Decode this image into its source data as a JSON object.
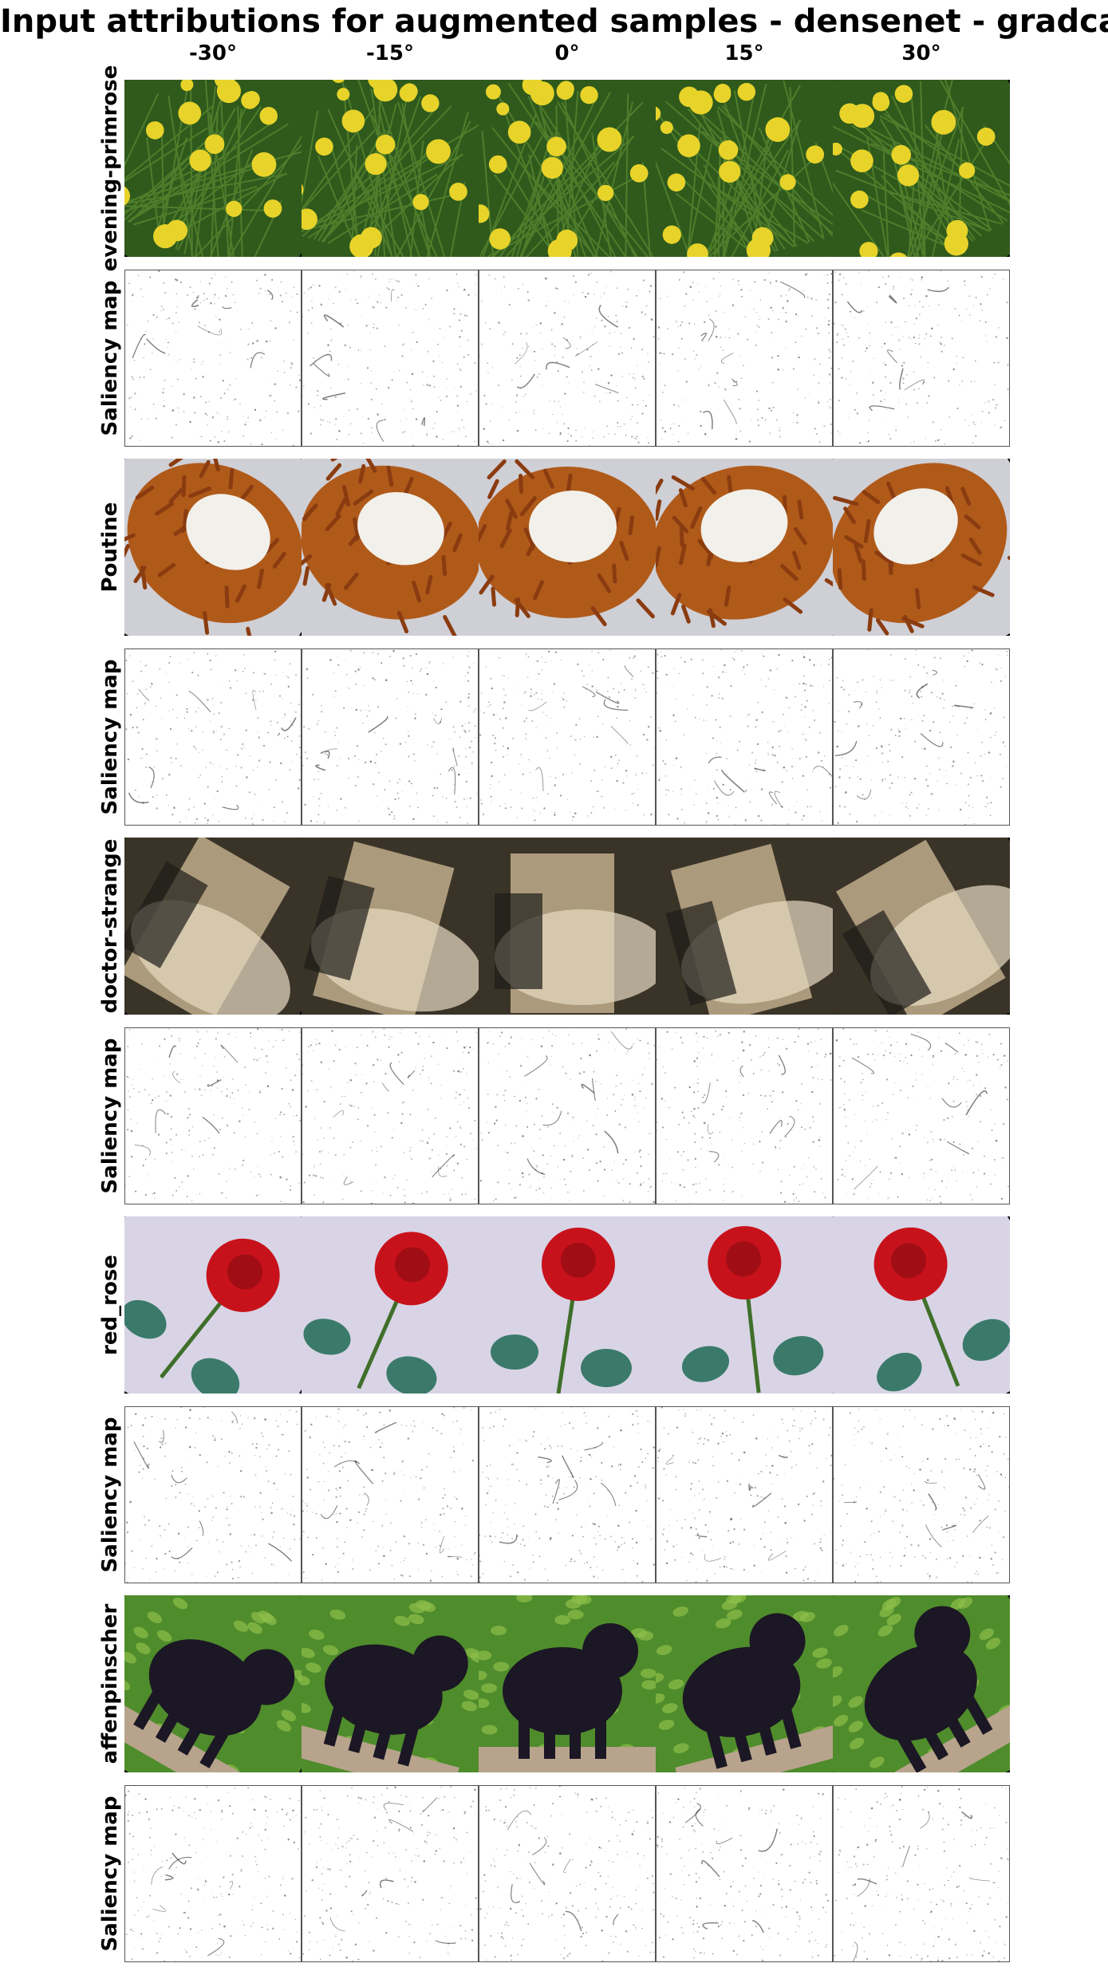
{
  "title": "Input attributions for augmented samples - densenet - gradcam",
  "columns": [
    "-30°",
    "-15°",
    "0°",
    "15°",
    "30°"
  ],
  "rotations_deg": [
    -30,
    -15,
    0,
    15,
    30
  ],
  "rows": [
    {
      "label": "evening-primrose",
      "kind": "image",
      "subject": "primrose",
      "colors": [
        "#2f5a1c",
        "#e8d32a",
        "#4f7d2b"
      ]
    },
    {
      "label": "Saliency map",
      "kind": "saliency"
    },
    {
      "label": "Poutine",
      "kind": "image",
      "subject": "poutine",
      "colors": [
        "#b05a1a",
        "#f2f0ea",
        "#cfcfd6"
      ]
    },
    {
      "label": "Saliency map",
      "kind": "saliency"
    },
    {
      "label": "doctor-strange",
      "kind": "image",
      "subject": "blurry-room",
      "colors": [
        "#3a3428",
        "#c9b491",
        "#e8dcc2"
      ]
    },
    {
      "label": "Saliency map",
      "kind": "saliency"
    },
    {
      "label": "red_rose",
      "kind": "image",
      "subject": "rose",
      "colors": [
        "#d8d4e6",
        "#c8121b",
        "#3b7a6a"
      ]
    },
    {
      "label": "Saliency map",
      "kind": "saliency"
    },
    {
      "label": "affenpinscher",
      "kind": "image",
      "subject": "dog",
      "colors": [
        "#4f8c2c",
        "#1b1724",
        "#b8a38c"
      ]
    },
    {
      "label": "Saliency map",
      "kind": "saliency"
    }
  ]
}
